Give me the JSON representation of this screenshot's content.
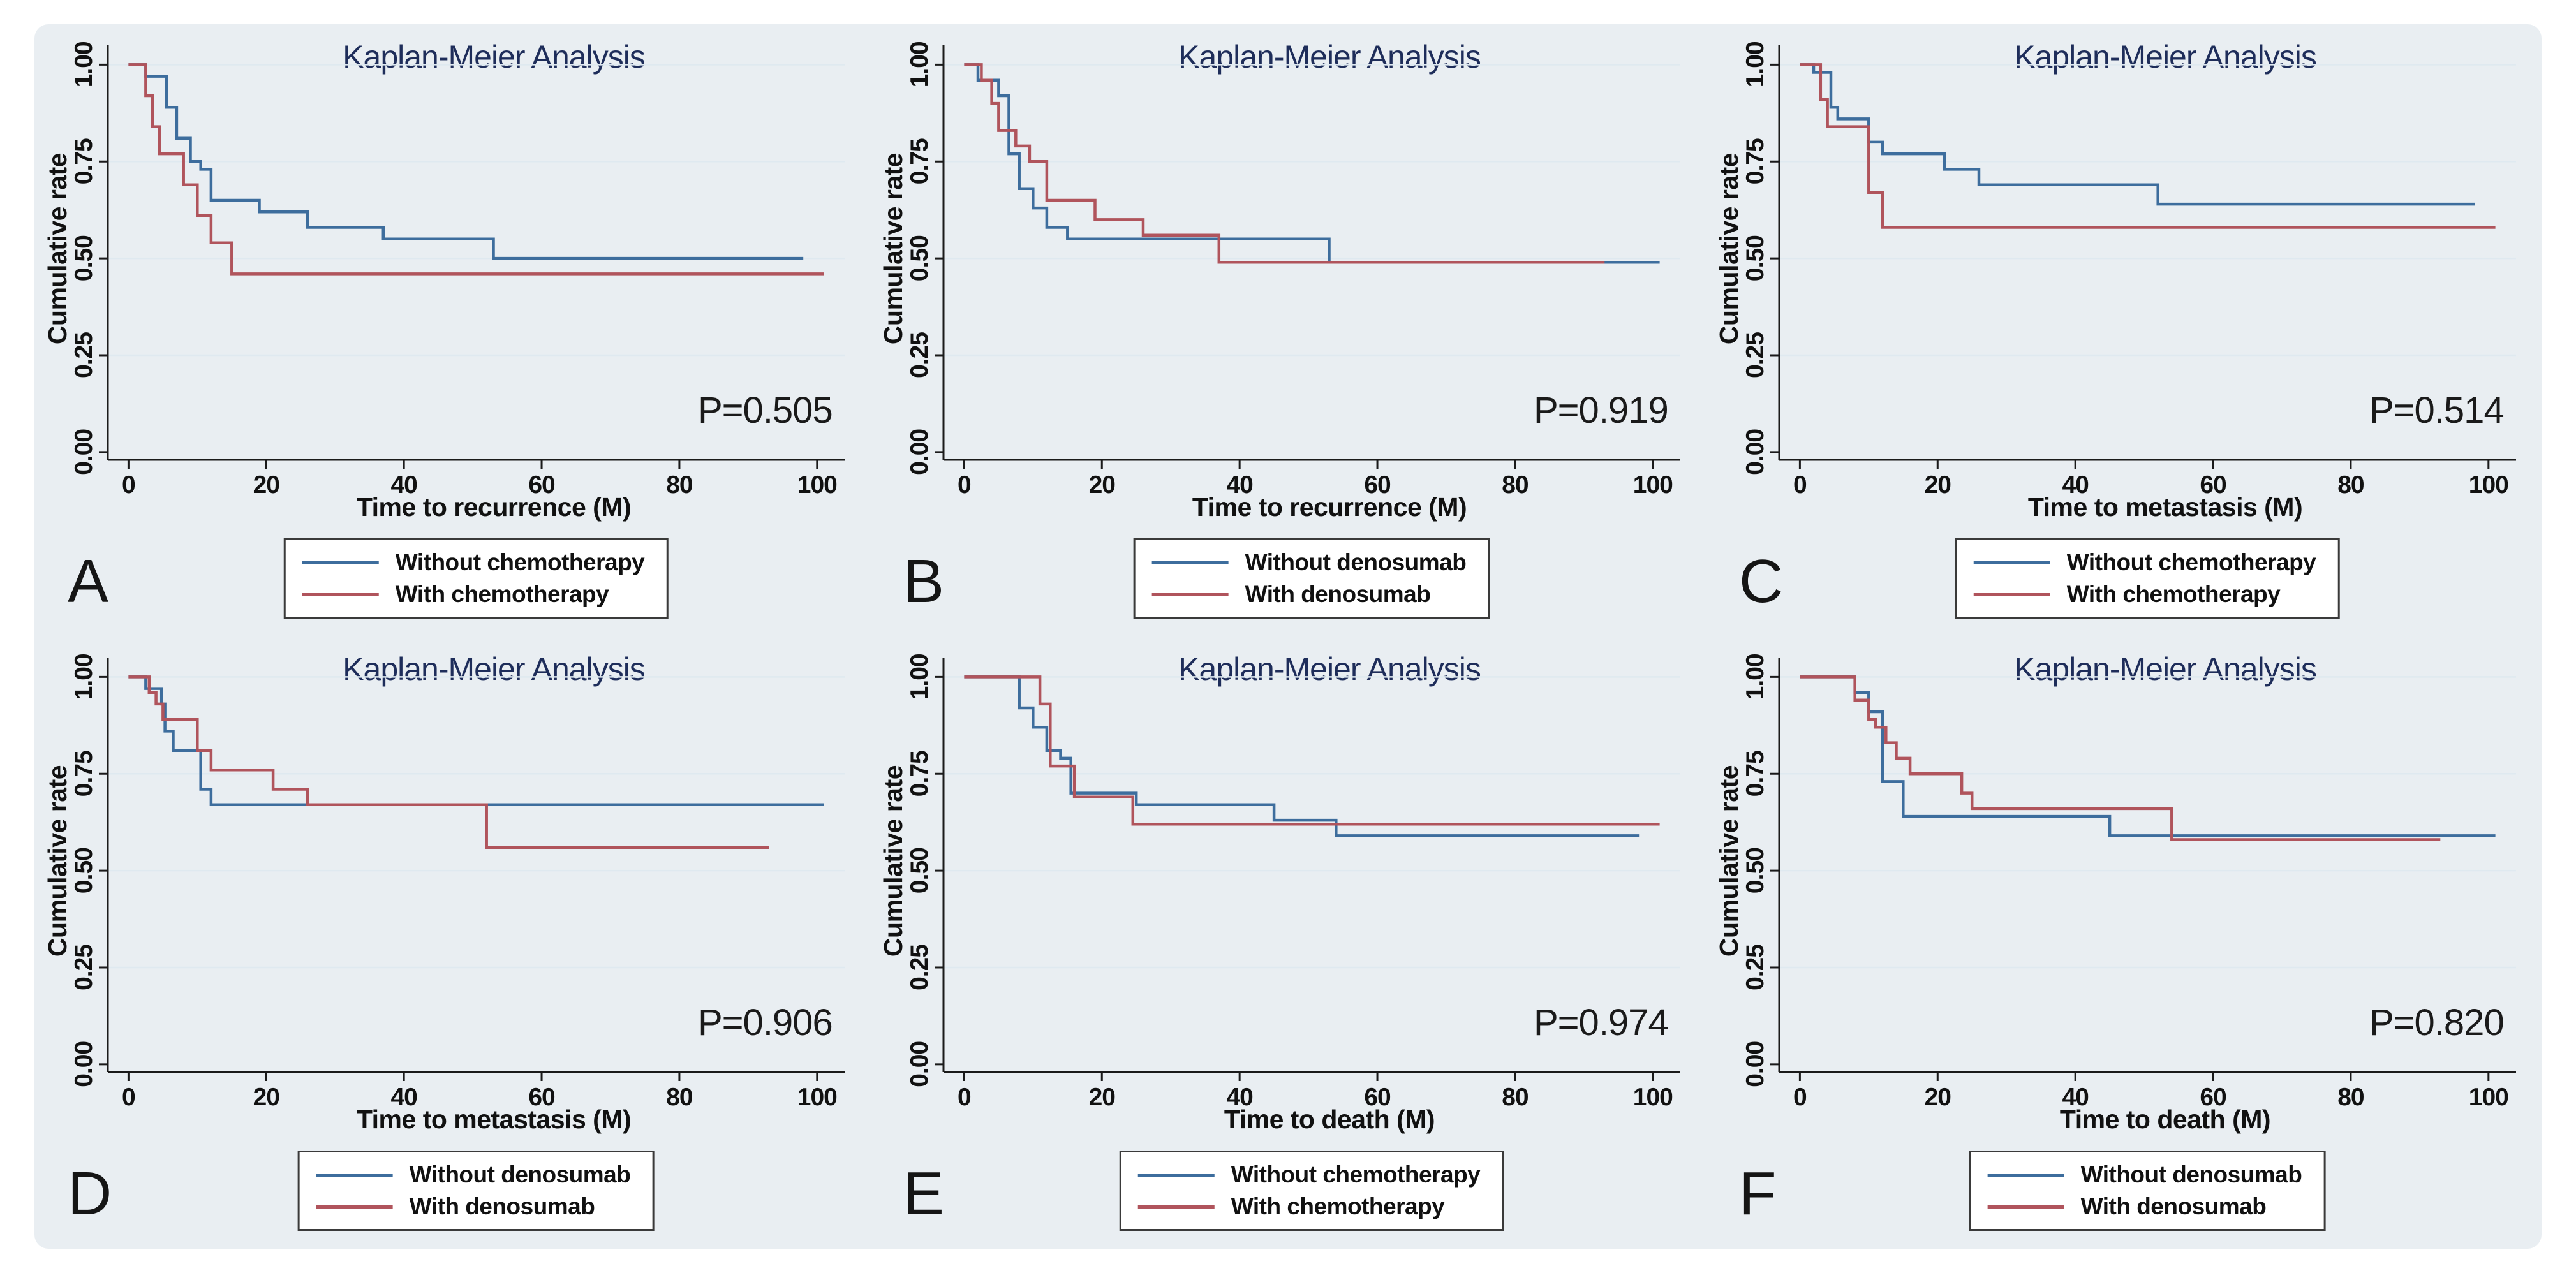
{
  "figure": {
    "background": "#e9eef2",
    "page_background": "#ffffff",
    "title_color": "#1e2d5a",
    "axis_color": "#1a1a1a",
    "grid_color": "#dfe9f0",
    "blue": "#3d6d9d",
    "red": "#b0545c"
  },
  "chart_data": [
    {
      "type": "line",
      "panel": "A",
      "title": "Kaplan-Meier Analysis",
      "xlabel": "Time to recurrence (M)",
      "ylabel": "Cumulative rate",
      "p_label": "P=0.505",
      "xlim": [
        -3,
        104
      ],
      "ylim": [
        -0.02,
        1.05
      ],
      "xticks": [
        0,
        20,
        40,
        60,
        80,
        100
      ],
      "yticks": [
        0,
        0.25,
        0.5,
        0.75,
        1
      ],
      "grid": "horizontal",
      "legend_position": "below",
      "series": [
        {
          "name": "Without chemotherapy",
          "color": "#3d6d9d",
          "end_x": 98,
          "steps": [
            [
              0,
              1.0
            ],
            [
              2.5,
              0.97
            ],
            [
              5.5,
              0.89
            ],
            [
              7,
              0.81
            ],
            [
              9,
              0.75
            ],
            [
              10.5,
              0.73
            ],
            [
              12,
              0.65
            ],
            [
              19,
              0.62
            ],
            [
              26,
              0.58
            ],
            [
              37,
              0.55
            ],
            [
              53,
              0.5
            ]
          ]
        },
        {
          "name": "With chemotherapy",
          "color": "#b0545c",
          "end_x": 101,
          "steps": [
            [
              0,
              1.0
            ],
            [
              2.5,
              0.92
            ],
            [
              3.5,
              0.84
            ],
            [
              4.5,
              0.77
            ],
            [
              8,
              0.69
            ],
            [
              10,
              0.61
            ],
            [
              12,
              0.54
            ],
            [
              15,
              0.46
            ]
          ]
        }
      ]
    },
    {
      "type": "line",
      "panel": "B",
      "title": "Kaplan-Meier Analysis",
      "xlabel": "Time to recurrence (M)",
      "ylabel": "Cumulative rate",
      "p_label": "P=0.919",
      "xlim": [
        -3,
        104
      ],
      "ylim": [
        -0.02,
        1.05
      ],
      "xticks": [
        0,
        20,
        40,
        60,
        80,
        100
      ],
      "yticks": [
        0,
        0.25,
        0.5,
        0.75,
        1
      ],
      "grid": "horizontal",
      "legend_position": "below",
      "series": [
        {
          "name": "Without denosumab",
          "color": "#3d6d9d",
          "end_x": 101,
          "steps": [
            [
              0,
              1.0
            ],
            [
              2,
              0.96
            ],
            [
              5,
              0.92
            ],
            [
              6.5,
              0.77
            ],
            [
              8,
              0.68
            ],
            [
              10,
              0.63
            ],
            [
              12,
              0.58
            ],
            [
              15,
              0.55
            ],
            [
              53,
              0.49
            ]
          ]
        },
        {
          "name": "With denosumab",
          "color": "#b0545c",
          "end_x": 93,
          "steps": [
            [
              0,
              1.0
            ],
            [
              2.5,
              0.96
            ],
            [
              4,
              0.9
            ],
            [
              5,
              0.83
            ],
            [
              7.5,
              0.79
            ],
            [
              9.5,
              0.75
            ],
            [
              12,
              0.65
            ],
            [
              19,
              0.6
            ],
            [
              26,
              0.56
            ],
            [
              37,
              0.49
            ]
          ]
        }
      ]
    },
    {
      "type": "line",
      "panel": "C",
      "title": "Kaplan-Meier Analysis",
      "xlabel": "Time to metastasis (M)",
      "ylabel": "Cumulative rate",
      "p_label": "P=0.514",
      "xlim": [
        -3,
        104
      ],
      "ylim": [
        -0.02,
        1.05
      ],
      "xticks": [
        0,
        20,
        40,
        60,
        80,
        100
      ],
      "yticks": [
        0,
        0.25,
        0.5,
        0.75,
        1
      ],
      "grid": "horizontal",
      "legend_position": "below",
      "series": [
        {
          "name": "Without chemotherapy",
          "color": "#3d6d9d",
          "end_x": 98,
          "steps": [
            [
              0,
              1.0
            ],
            [
              2,
              0.98
            ],
            [
              4.5,
              0.89
            ],
            [
              5.5,
              0.86
            ],
            [
              10,
              0.8
            ],
            [
              12,
              0.77
            ],
            [
              21,
              0.73
            ],
            [
              26,
              0.69
            ],
            [
              52,
              0.64
            ]
          ]
        },
        {
          "name": "With chemotherapy",
          "color": "#b0545c",
          "end_x": 101,
          "steps": [
            [
              0,
              1.0
            ],
            [
              3,
              0.91
            ],
            [
              4,
              0.84
            ],
            [
              10,
              0.67
            ],
            [
              12,
              0.58
            ]
          ]
        }
      ]
    },
    {
      "type": "line",
      "panel": "D",
      "title": "Kaplan-Meier Analysis",
      "xlabel": "Time to metastasis (M)",
      "ylabel": "Cumulative rate",
      "p_label": "P=0.906",
      "xlim": [
        -3,
        104
      ],
      "ylim": [
        -0.02,
        1.05
      ],
      "xticks": [
        0,
        20,
        40,
        60,
        80,
        100
      ],
      "yticks": [
        0,
        0.25,
        0.5,
        0.75,
        1
      ],
      "grid": "horizontal",
      "legend_position": "below",
      "series": [
        {
          "name": "Without denosumab",
          "color": "#3d6d9d",
          "end_x": 101,
          "steps": [
            [
              0,
              1.0
            ],
            [
              2.5,
              0.97
            ],
            [
              4.8,
              0.93
            ],
            [
              5.3,
              0.86
            ],
            [
              6.5,
              0.81
            ],
            [
              10.5,
              0.71
            ],
            [
              12,
              0.67
            ]
          ]
        },
        {
          "name": "With denosumab",
          "color": "#b0545c",
          "end_x": 93,
          "steps": [
            [
              0,
              1.0
            ],
            [
              3,
              0.96
            ],
            [
              4,
              0.93
            ],
            [
              5,
              0.89
            ],
            [
              10,
              0.81
            ],
            [
              12,
              0.76
            ],
            [
              21,
              0.71
            ],
            [
              26,
              0.67
            ],
            [
              52,
              0.56
            ]
          ]
        }
      ]
    },
    {
      "type": "line",
      "panel": "E",
      "title": "Kaplan-Meier Analysis",
      "xlabel": "Time to death (M)",
      "ylabel": "Cumulative rate",
      "p_label": "P=0.974",
      "xlim": [
        -3,
        104
      ],
      "ylim": [
        -0.02,
        1.05
      ],
      "xticks": [
        0,
        20,
        40,
        60,
        80,
        100
      ],
      "yticks": [
        0,
        0.25,
        0.5,
        0.75,
        1
      ],
      "grid": "horizontal",
      "legend_position": "below",
      "series": [
        {
          "name": "Without chemotherapy",
          "color": "#3d6d9d",
          "end_x": 98,
          "steps": [
            [
              0,
              1.0
            ],
            [
              8,
              0.92
            ],
            [
              10,
              0.87
            ],
            [
              12,
              0.81
            ],
            [
              14,
              0.79
            ],
            [
              15.5,
              0.7
            ],
            [
              25,
              0.67
            ],
            [
              45,
              0.63
            ],
            [
              54,
              0.59
            ]
          ]
        },
        {
          "name": "With chemotherapy",
          "color": "#b0545c",
          "end_x": 101,
          "steps": [
            [
              0,
              1.0
            ],
            [
              11,
              0.93
            ],
            [
              12.5,
              0.77
            ],
            [
              16,
              0.69
            ],
            [
              24.5,
              0.62
            ]
          ]
        }
      ]
    },
    {
      "type": "line",
      "panel": "F",
      "title": "Kaplan-Meier Analysis",
      "xlabel": "Time to death (M)",
      "ylabel": "Cumulative rate",
      "p_label": "P=0.820",
      "xlim": [
        -3,
        104
      ],
      "ylim": [
        -0.02,
        1.05
      ],
      "xticks": [
        0,
        20,
        40,
        60,
        80,
        100
      ],
      "yticks": [
        0,
        0.25,
        0.5,
        0.75,
        1
      ],
      "grid": "horizontal",
      "legend_position": "below",
      "series": [
        {
          "name": "Without denosumab",
          "color": "#3d6d9d",
          "end_x": 101,
          "steps": [
            [
              0,
              1.0
            ],
            [
              8,
              0.96
            ],
            [
              10,
              0.91
            ],
            [
              12,
              0.73
            ],
            [
              15,
              0.64
            ],
            [
              45,
              0.59
            ]
          ]
        },
        {
          "name": "With denosumab",
          "color": "#b0545c",
          "end_x": 93,
          "steps": [
            [
              0,
              1.0
            ],
            [
              8,
              0.94
            ],
            [
              10,
              0.89
            ],
            [
              11,
              0.87
            ],
            [
              12.5,
              0.83
            ],
            [
              14,
              0.79
            ],
            [
              16,
              0.75
            ],
            [
              23.5,
              0.7
            ],
            [
              25,
              0.66
            ],
            [
              54,
              0.58
            ]
          ]
        }
      ]
    }
  ]
}
